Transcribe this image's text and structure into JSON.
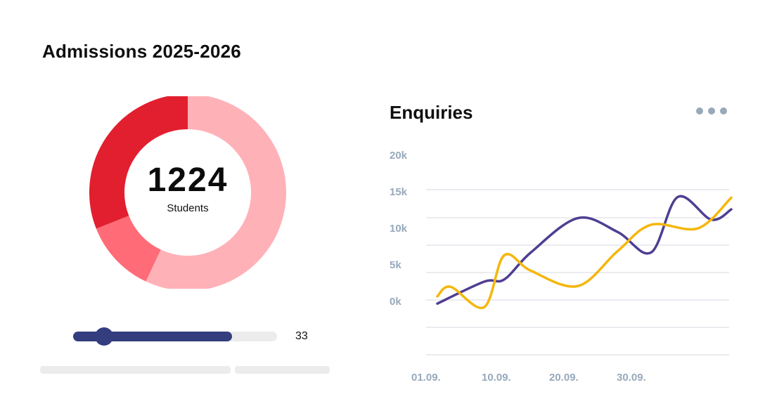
{
  "header": {
    "title": "Admissions 2025-2026"
  },
  "donut": {
    "total": "1224",
    "label": "Students",
    "segments": [
      {
        "value": 0.57,
        "color": "#ffb1b8"
      },
      {
        "value": 0.12,
        "color": "#ff6b76"
      },
      {
        "value": 0.31,
        "color": "#e21f2f"
      }
    ]
  },
  "slider": {
    "value": "33",
    "fill_fraction": 0.78,
    "thumb_fraction": 0.15,
    "color": "#343e7f"
  },
  "enquiries": {
    "title": "Enquiries",
    "more_icon": "ellipsis-icon"
  },
  "chart_data": {
    "type": "line",
    "title": "Enquiries",
    "y_ticks": [
      "20k",
      "15k",
      "10k",
      "5k",
      "0k"
    ],
    "x_ticks": [
      "01.09.",
      "10.09.",
      "20.09.",
      "30.09."
    ],
    "ylim": [
      0,
      20000
    ],
    "grid": true,
    "series": [
      {
        "color": "#4f3e92",
        "points": [
          [
            1,
            -500
          ],
          [
            8,
            2500
          ],
          [
            11,
            2800
          ],
          [
            15,
            6500
          ],
          [
            22,
            11200
          ],
          [
            28,
            9300
          ],
          [
            33,
            6500
          ],
          [
            37,
            14100
          ],
          [
            42,
            11000
          ],
          [
            45,
            12400
          ]
        ]
      },
      {
        "color": "#f5b70c",
        "points": [
          [
            1,
            500
          ],
          [
            3,
            1800
          ],
          [
            8,
            -1000
          ],
          [
            11,
            6100
          ],
          [
            15,
            4000
          ],
          [
            22,
            1900
          ],
          [
            28,
            6700
          ],
          [
            33,
            10300
          ],
          [
            40,
            9800
          ],
          [
            45,
            14000
          ]
        ]
      }
    ]
  }
}
